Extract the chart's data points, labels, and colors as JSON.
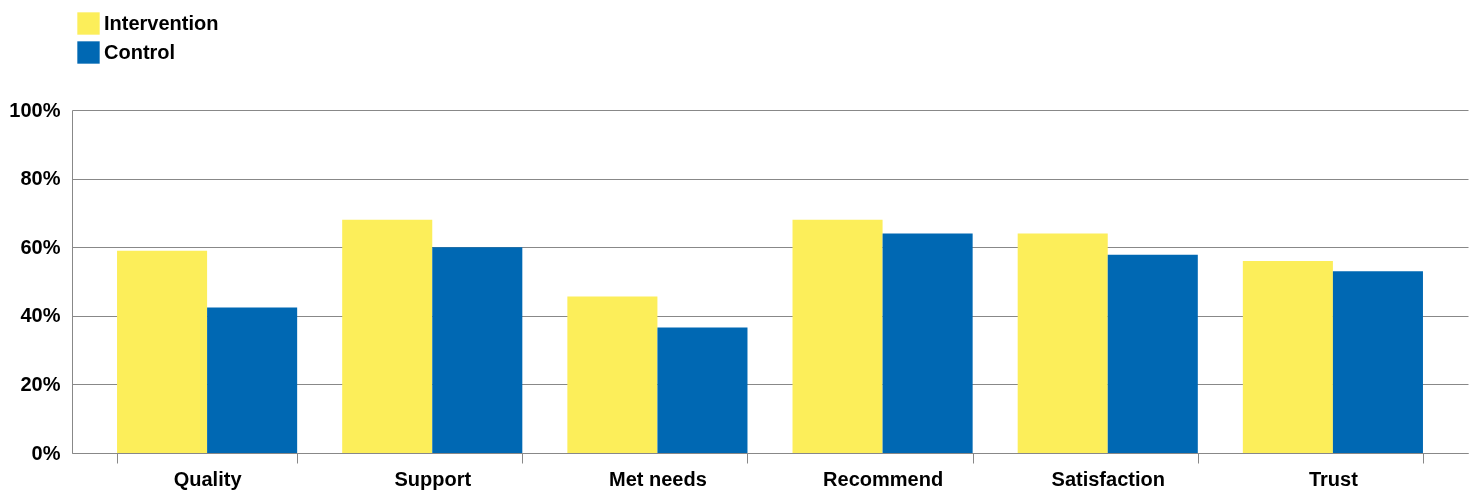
{
  "chart_data": {
    "type": "bar",
    "categories": [
      "Quality",
      "Support",
      "Met needs",
      "Recommend",
      "Satisfaction",
      "Trust"
    ],
    "series": [
      {
        "name": "Intervention",
        "color": "#fcee5a",
        "values": [
          59,
          68,
          45.6,
          68,
          64,
          56
        ]
      },
      {
        "name": "Control",
        "color": "#0068b3",
        "values": [
          42.4,
          60,
          36.6,
          64,
          57.8,
          53
        ]
      }
    ],
    "ylim": [
      0,
      100
    ],
    "yticks": [
      {
        "value": 0,
        "label": "0%"
      },
      {
        "value": 20,
        "label": "20%"
      },
      {
        "value": 40,
        "label": "40%"
      },
      {
        "value": 60,
        "label": "60%"
      },
      {
        "value": 80,
        "label": "80%"
      },
      {
        "value": 100,
        "label": "100%"
      }
    ],
    "grid": "y",
    "legend": "top left"
  }
}
